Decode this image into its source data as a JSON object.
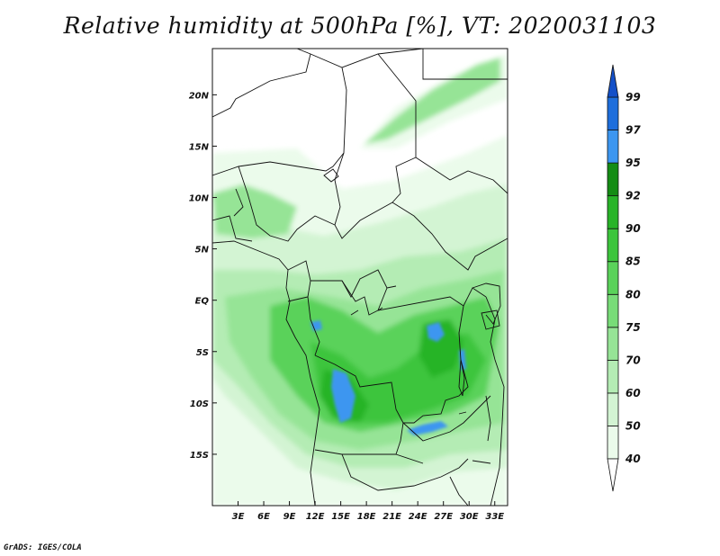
{
  "title": "Relative humidity at 500hPa [%], VT: 2020031103",
  "credit": "GrADS: IGES/COLA",
  "map": {
    "projection": "lat-lon",
    "lon_range": [
      0,
      34.5
    ],
    "lat_range": [
      -20,
      24.5
    ],
    "lat_ticks": [
      {
        "label": "20N",
        "value": 20
      },
      {
        "label": "15N",
        "value": 15
      },
      {
        "label": "10N",
        "value": 10
      },
      {
        "label": "5N",
        "value": 5
      },
      {
        "label": "EQ",
        "value": 0
      },
      {
        "label": "5S",
        "value": -5
      },
      {
        "label": "10S",
        "value": -10
      },
      {
        "label": "15S",
        "value": -15
      }
    ],
    "lon_ticks": [
      {
        "label": "3E",
        "value": 3
      },
      {
        "label": "6E",
        "value": 6
      },
      {
        "label": "9E",
        "value": 9
      },
      {
        "label": "12E",
        "value": 12
      },
      {
        "label": "15E",
        "value": 15
      },
      {
        "label": "18E",
        "value": 18
      },
      {
        "label": "21E",
        "value": 21
      },
      {
        "label": "24E",
        "value": 24
      },
      {
        "label": "27E",
        "value": 27
      },
      {
        "label": "30E",
        "value": 30
      },
      {
        "label": "33E",
        "value": 33
      }
    ]
  },
  "colorbar": {
    "levels": [
      {
        "label": "40",
        "color": "#ebfbeb"
      },
      {
        "label": "50",
        "color": "#d3f4d3"
      },
      {
        "label": "60",
        "color": "#b4ecb4"
      },
      {
        "label": "70",
        "color": "#96e496"
      },
      {
        "label": "75",
        "color": "#78dc78"
      },
      {
        "label": "80",
        "color": "#5ad25a"
      },
      {
        "label": "85",
        "color": "#3cc53c"
      },
      {
        "label": "90",
        "color": "#28b428"
      },
      {
        "label": "92",
        "color": "#148c14"
      },
      {
        "label": "95",
        "color": "#3c96f0"
      },
      {
        "label": "97",
        "color": "#1e6edc"
      },
      {
        "label": "99",
        "color": "#1450c8"
      }
    ],
    "below_color": "#ffffff",
    "above_color": "#1450c8"
  }
}
